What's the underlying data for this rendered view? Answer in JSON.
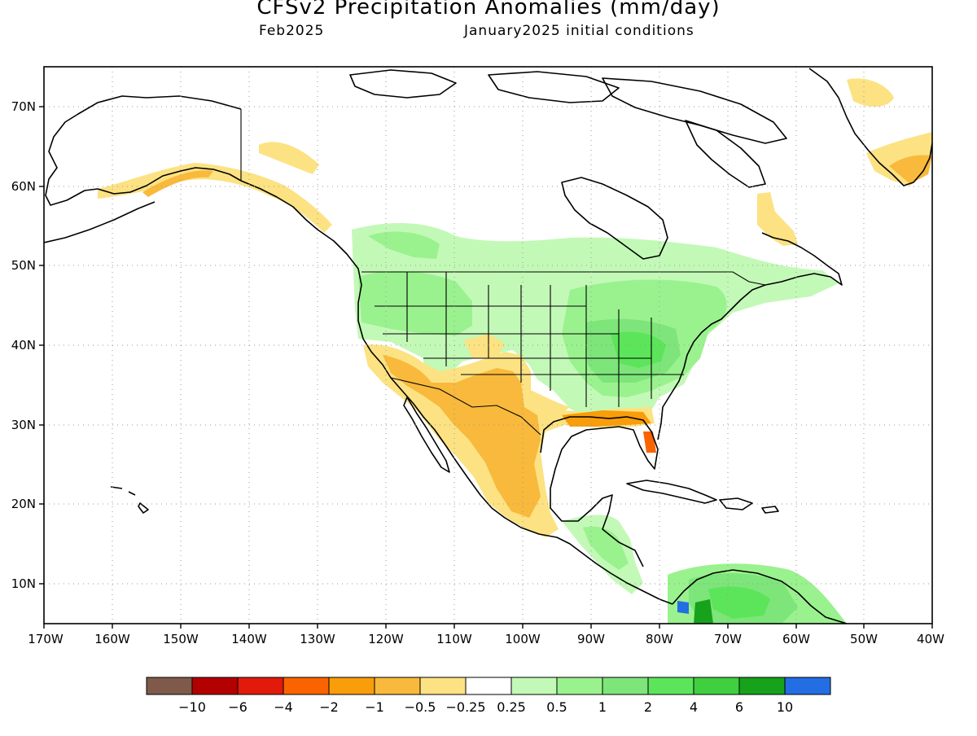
{
  "header": {
    "title": "CFSv2 Precipitation Anomalies (mm/day)",
    "valid_month": "Feb2025",
    "init_conditions": "January2025 initial conditions"
  },
  "map": {
    "lat_labels": [
      "70N",
      "60N",
      "50N",
      "40N",
      "30N",
      "20N",
      "10N"
    ],
    "lon_labels": [
      "170W",
      "160W",
      "150W",
      "140W",
      "130W",
      "120W",
      "110W",
      "100W",
      "90W",
      "80W",
      "70W",
      "60W",
      "50W",
      "40W"
    ]
  },
  "legend": {
    "colors": [
      "#7f5a4a",
      "#b30000",
      "#e21a0c",
      "#fa6400",
      "#f99d0a",
      "#f8b93c",
      "#fce282",
      "#ffffff",
      "#c3f9b7",
      "#9af28e",
      "#7de57a",
      "#5ce55a",
      "#3fcf3f",
      "#16a21a",
      "#236ee3"
    ],
    "labels": [
      "−10",
      "−6",
      "−4",
      "−2",
      "−1",
      "−0.5",
      "−0.25",
      "0.25",
      "0.5",
      "1",
      "2",
      "4",
      "6",
      "10"
    ]
  }
}
